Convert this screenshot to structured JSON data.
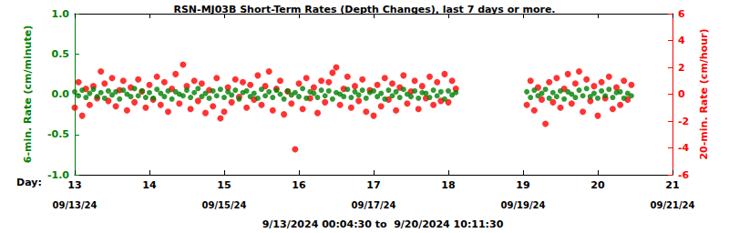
{
  "chart_data": {
    "type": "scatter",
    "title": "RSN-MJ03B Short-Term Rates (Depth Changes), last 7 days or more.",
    "subtitle": "9/13/2024 00:04:30 to  9/20/2024 10:11:30",
    "xlabel": "Day:",
    "ylabel": "6-min. Rate (cm/minute)",
    "y2label": "20-min. Rate (cm/hour)",
    "xlim": [
      13,
      21
    ],
    "xticks": [
      13,
      14,
      15,
      16,
      17,
      18,
      19,
      20,
      21
    ],
    "ylim": [
      -1,
      1
    ],
    "yticks": [
      {
        "value": -1,
        "label": "-1.0"
      },
      -0.5,
      {
        "value": 0,
        "label": "0.0"
      },
      0.5,
      {
        "value": 1,
        "label": "1.0"
      }
    ],
    "y2lim": [
      -6,
      6
    ],
    "y2ticks": [
      -6,
      -4,
      -2,
      0,
      2,
      4,
      6
    ],
    "grid": false,
    "annotations": [
      {
        "x": 13,
        "text": "09/13/24"
      },
      {
        "x": 15,
        "text": "09/15/24"
      },
      {
        "x": 17,
        "text": "09/17/24"
      },
      {
        "x": 19,
        "text": "09/19/24"
      },
      {
        "x": 21,
        "text": "09/21/24"
      }
    ],
    "x": [
      13,
      13.05,
      13.1,
      13.15,
      13.2,
      13.25,
      13.3,
      13.35,
      13.4,
      13.45,
      13.5,
      13.55,
      13.6,
      13.65,
      13.7,
      13.75,
      13.8,
      13.85,
      13.9,
      13.95,
      14,
      14.05,
      14.1,
      14.15,
      14.2,
      14.25,
      14.3,
      14.35,
      14.4,
      14.45,
      14.5,
      14.55,
      14.6,
      14.65,
      14.7,
      14.75,
      14.8,
      14.85,
      14.9,
      14.95,
      15,
      15.05,
      15.1,
      15.15,
      15.2,
      15.25,
      15.3,
      15.35,
      15.4,
      15.45,
      15.5,
      15.55,
      15.6,
      15.65,
      15.7,
      15.75,
      15.8,
      15.85,
      15.9,
      15.95,
      16,
      16.05,
      16.1,
      16.15,
      16.2,
      16.25,
      16.3,
      16.35,
      16.4,
      16.45,
      16.5,
      16.55,
      16.6,
      16.65,
      16.7,
      16.75,
      16.8,
      16.85,
      16.9,
      16.95,
      17,
      17.05,
      17.1,
      17.15,
      17.2,
      17.25,
      17.3,
      17.35,
      17.4,
      17.45,
      17.5,
      17.55,
      17.6,
      17.65,
      17.7,
      17.75,
      17.8,
      17.85,
      17.9,
      17.95,
      18,
      18.05,
      18.1,
      19.05,
      19.1,
      19.15,
      19.2,
      19.25,
      19.3,
      19.35,
      19.4,
      19.45,
      19.5,
      19.55,
      19.6,
      19.65,
      19.7,
      19.75,
      19.8,
      19.85,
      19.9,
      19.95,
      20,
      20.05,
      20.1,
      20.15,
      20.2,
      20.25,
      20.3,
      20.35,
      20.4,
      20.45
    ],
    "series": [
      {
        "color": "#ff0000",
        "axis": "y2",
        "marker": "circle",
        "values": [
          -1.0,
          0.9,
          -1.6,
          0.4,
          -0.8,
          0.6,
          -0.3,
          1.7,
          0.8,
          -0.5,
          1.2,
          -0.9,
          0.3,
          1.0,
          -1.2,
          0.5,
          -0.6,
          1.1,
          0.2,
          -1.0,
          0.7,
          -0.4,
          1.3,
          -0.8,
          0.9,
          -1.3,
          0.4,
          1.5,
          -0.7,
          2.2,
          0.6,
          -1.1,
          1.0,
          -0.5,
          0.8,
          -1.4,
          0.3,
          -0.9,
          1.2,
          -1.8,
          -1.3,
          0.5,
          -0.6,
          1.1,
          -0.2,
          0.9,
          -1.0,
          0.7,
          -0.4,
          1.4,
          -0.8,
          0.6,
          1.7,
          -1.2,
          0.4,
          1.0,
          -1.5,
          0.2,
          -0.7,
          -4.1,
          0.8,
          -1.1,
          1.2,
          -0.3,
          0.5,
          -1.4,
          1.0,
          -0.6,
          0.9,
          1.6,
          2.0,
          -0.8,
          0.4,
          1.3,
          -1.0,
          0.6,
          -0.5,
          1.1,
          -1.3,
          0.3,
          -1.6,
          0.7,
          -0.9,
          1.2,
          -0.4,
          0.8,
          -1.2,
          0.5,
          1.4,
          -0.7,
          0.2,
          1.0,
          -1.1,
          0.6,
          -0.3,
          1.3,
          -0.8,
          0.9,
          -0.5,
          1.5,
          -0.6,
          1.0,
          0.4,
          -0.8,
          1.0,
          -1.2,
          0.5,
          -0.4,
          -2.2,
          0.9,
          -0.6,
          1.2,
          -1.0,
          0.4,
          1.5,
          -0.7,
          0.8,
          1.7,
          -1.3,
          1.1,
          -0.5,
          0.6,
          -1.6,
          0.9,
          -0.3,
          1.3,
          -1.1,
          0.5,
          -0.8,
          1.0,
          -0.4,
          0.7
        ]
      },
      {
        "color": "#008000",
        "axis": "y",
        "marker": "circle",
        "values": [
          0.03,
          -0.02,
          0.05,
          -0.04,
          0.01,
          0.06,
          -0.03,
          0.02,
          -0.05,
          0.04,
          -0.01,
          0.03,
          -0.06,
          0.05,
          0.0,
          -0.03,
          0.07,
          -0.02,
          0.04,
          -0.04,
          0.02,
          -0.05,
          0.06,
          0.01,
          -0.03,
          0.04,
          -0.06,
          0.03,
          0.0,
          -0.02,
          0.05,
          -0.04,
          0.02,
          0.07,
          -0.03,
          0.01,
          -0.05,
          0.04,
          -0.02,
          0.06,
          -0.04,
          0.03,
          -0.01,
          0.05,
          -0.06,
          0.02,
          0.04,
          -0.03,
          0.01,
          -0.05,
          0.06,
          -0.02,
          0.03,
          -0.04,
          0.05,
          0.0,
          -0.06,
          0.04,
          -0.01,
          0.02,
          -0.03,
          0.07,
          -0.05,
          0.03,
          0.01,
          -0.04,
          0.05,
          -0.02,
          0.04,
          -0.06,
          0.02,
          0.0,
          -0.03,
          0.06,
          -0.04,
          0.03,
          -0.01,
          0.05,
          -0.05,
          0.02,
          0.04,
          -0.03,
          0.01,
          -0.06,
          0.05,
          -0.02,
          0.03,
          -0.04,
          0.06,
          0.0,
          -0.03,
          0.04,
          -0.05,
          0.02,
          0.01,
          -0.04,
          0.05,
          -0.02,
          0.03,
          -0.06,
          0.04,
          -0.01,
          0.02,
          0.03,
          -0.04,
          0.05,
          -0.02,
          0.01,
          0.06,
          -0.05,
          0.02,
          -0.03,
          0.04,
          -0.06,
          0.03,
          0.0,
          -0.04,
          0.05,
          -0.02,
          0.07,
          -0.03,
          0.01,
          -0.05,
          0.04,
          -0.02,
          0.06,
          -0.04,
          0.02,
          0.03,
          -0.05,
          0.01,
          -0.02
        ]
      }
    ]
  }
}
